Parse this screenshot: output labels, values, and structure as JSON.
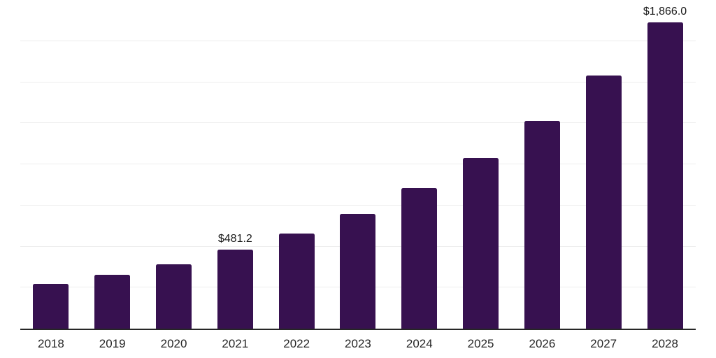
{
  "chart_data": {
    "type": "bar",
    "title": "",
    "xlabel": "",
    "ylabel": "",
    "categories": [
      "2018",
      "2019",
      "2020",
      "2021",
      "2022",
      "2023",
      "2024",
      "2025",
      "2026",
      "2027",
      "2028"
    ],
    "values": [
      272,
      330,
      393,
      481.2,
      580,
      700,
      857,
      1040,
      1262,
      1540,
      1866.0
    ],
    "data_labels": {
      "2021": "$481.2",
      "2028": "$1,866.0"
    },
    "ylim": [
      0,
      2000
    ],
    "gridline_interval": 250,
    "grid": true,
    "legend": false,
    "y_axis_tick_labels_visible": false,
    "colors": {
      "bar": "#371150",
      "axis_line": "#262626",
      "gridline": "#ededed",
      "tick_label": "#262626",
      "value_label": "#1a1a1a",
      "background": "#ffffff"
    }
  }
}
